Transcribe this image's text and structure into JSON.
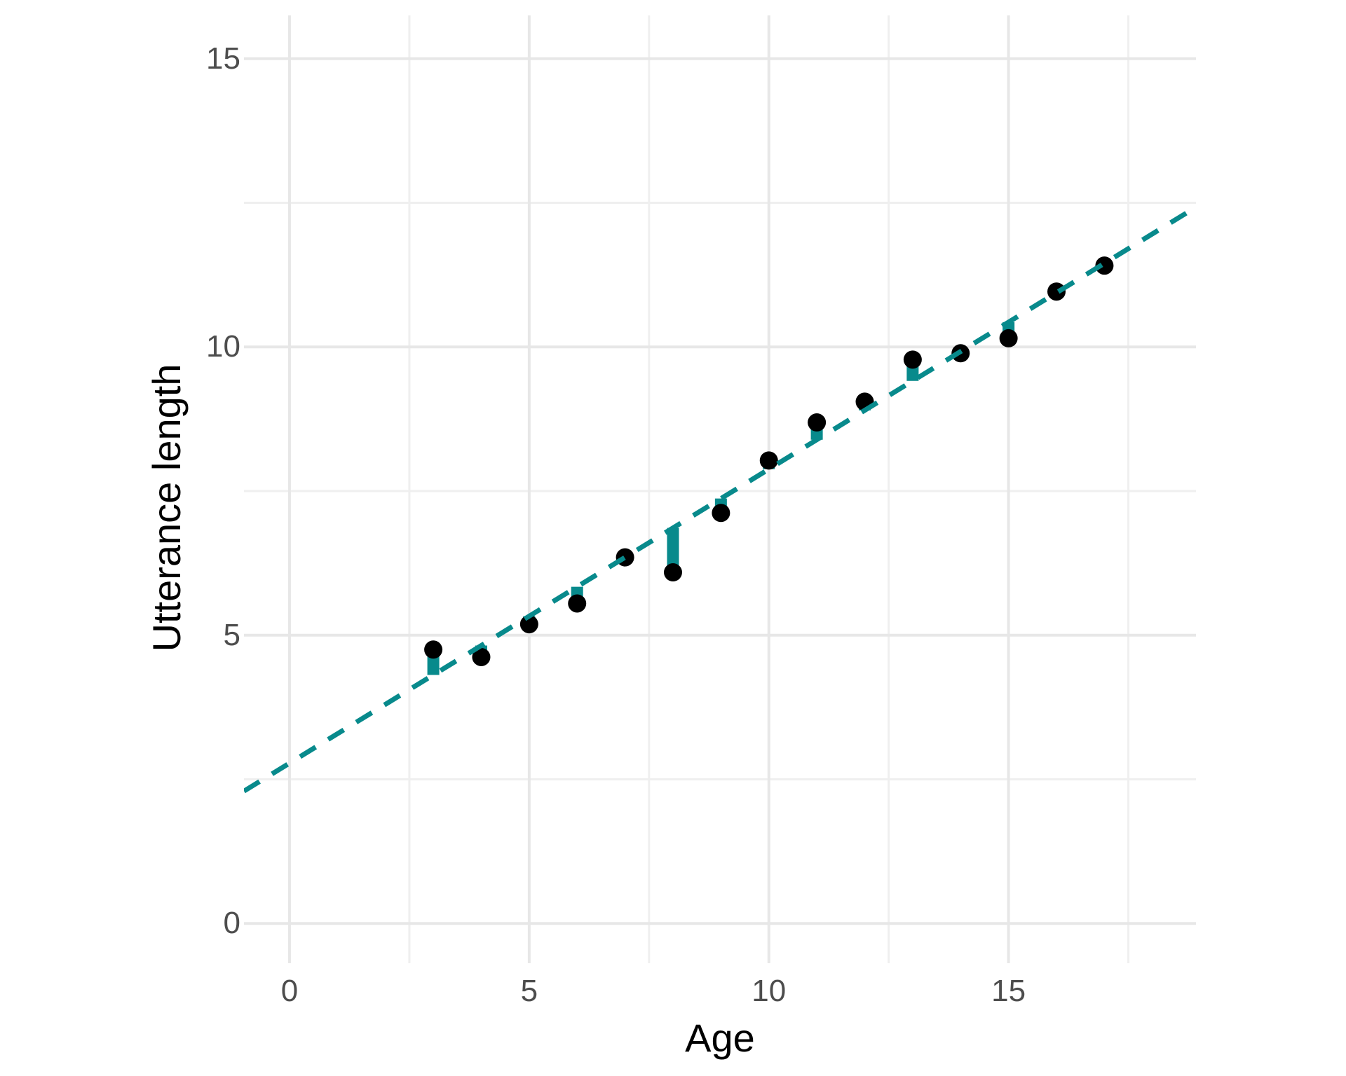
{
  "figure": {
    "background": "#ffffff"
  },
  "chart_data": {
    "type": "scatter",
    "title": "",
    "xlabel": "Age",
    "ylabel": "Utterance length",
    "points": [
      {
        "x": 3,
        "y": 4.75
      },
      {
        "x": 4,
        "y": 4.62
      },
      {
        "x": 5,
        "y": 5.19
      },
      {
        "x": 6,
        "y": 5.55
      },
      {
        "x": 7,
        "y": 6.35
      },
      {
        "x": 8,
        "y": 6.09
      },
      {
        "x": 9,
        "y": 7.12
      },
      {
        "x": 10,
        "y": 8.03
      },
      {
        "x": 11,
        "y": 8.69
      },
      {
        "x": 12,
        "y": 9.05
      },
      {
        "x": 13,
        "y": 9.78
      },
      {
        "x": 14,
        "y": 9.89
      },
      {
        "x": 15,
        "y": 10.15
      },
      {
        "x": 16,
        "y": 10.96
      },
      {
        "x": 17,
        "y": 11.41
      }
    ],
    "fit_line": {
      "type": "linear",
      "intercept": 2.78,
      "slope": 0.51,
      "style": "dashed"
    },
    "residual_segments_shown": true,
    "axes": {
      "x_ticks": [
        0,
        5,
        10,
        15
      ],
      "y_ticks": [
        0,
        5,
        10,
        15
      ],
      "x_minor_grid": [
        2.5,
        7.5,
        12.5,
        17.5
      ],
      "y_minor_grid": [
        2.5,
        7.5,
        12.5
      ],
      "xlim": [
        -0.95,
        18.91
      ],
      "ylim": [
        -0.69,
        15.75
      ],
      "grid": true,
      "legend": "none"
    },
    "colors": {
      "point": "#000000",
      "segment": "#088a8c",
      "fit_line": "#088a8c",
      "grid_major": "#e7e7e7",
      "grid_minor": "#efefef",
      "tick_label": "#4d4d4d",
      "axis_title": "#000000",
      "background": "#ffffff"
    }
  }
}
